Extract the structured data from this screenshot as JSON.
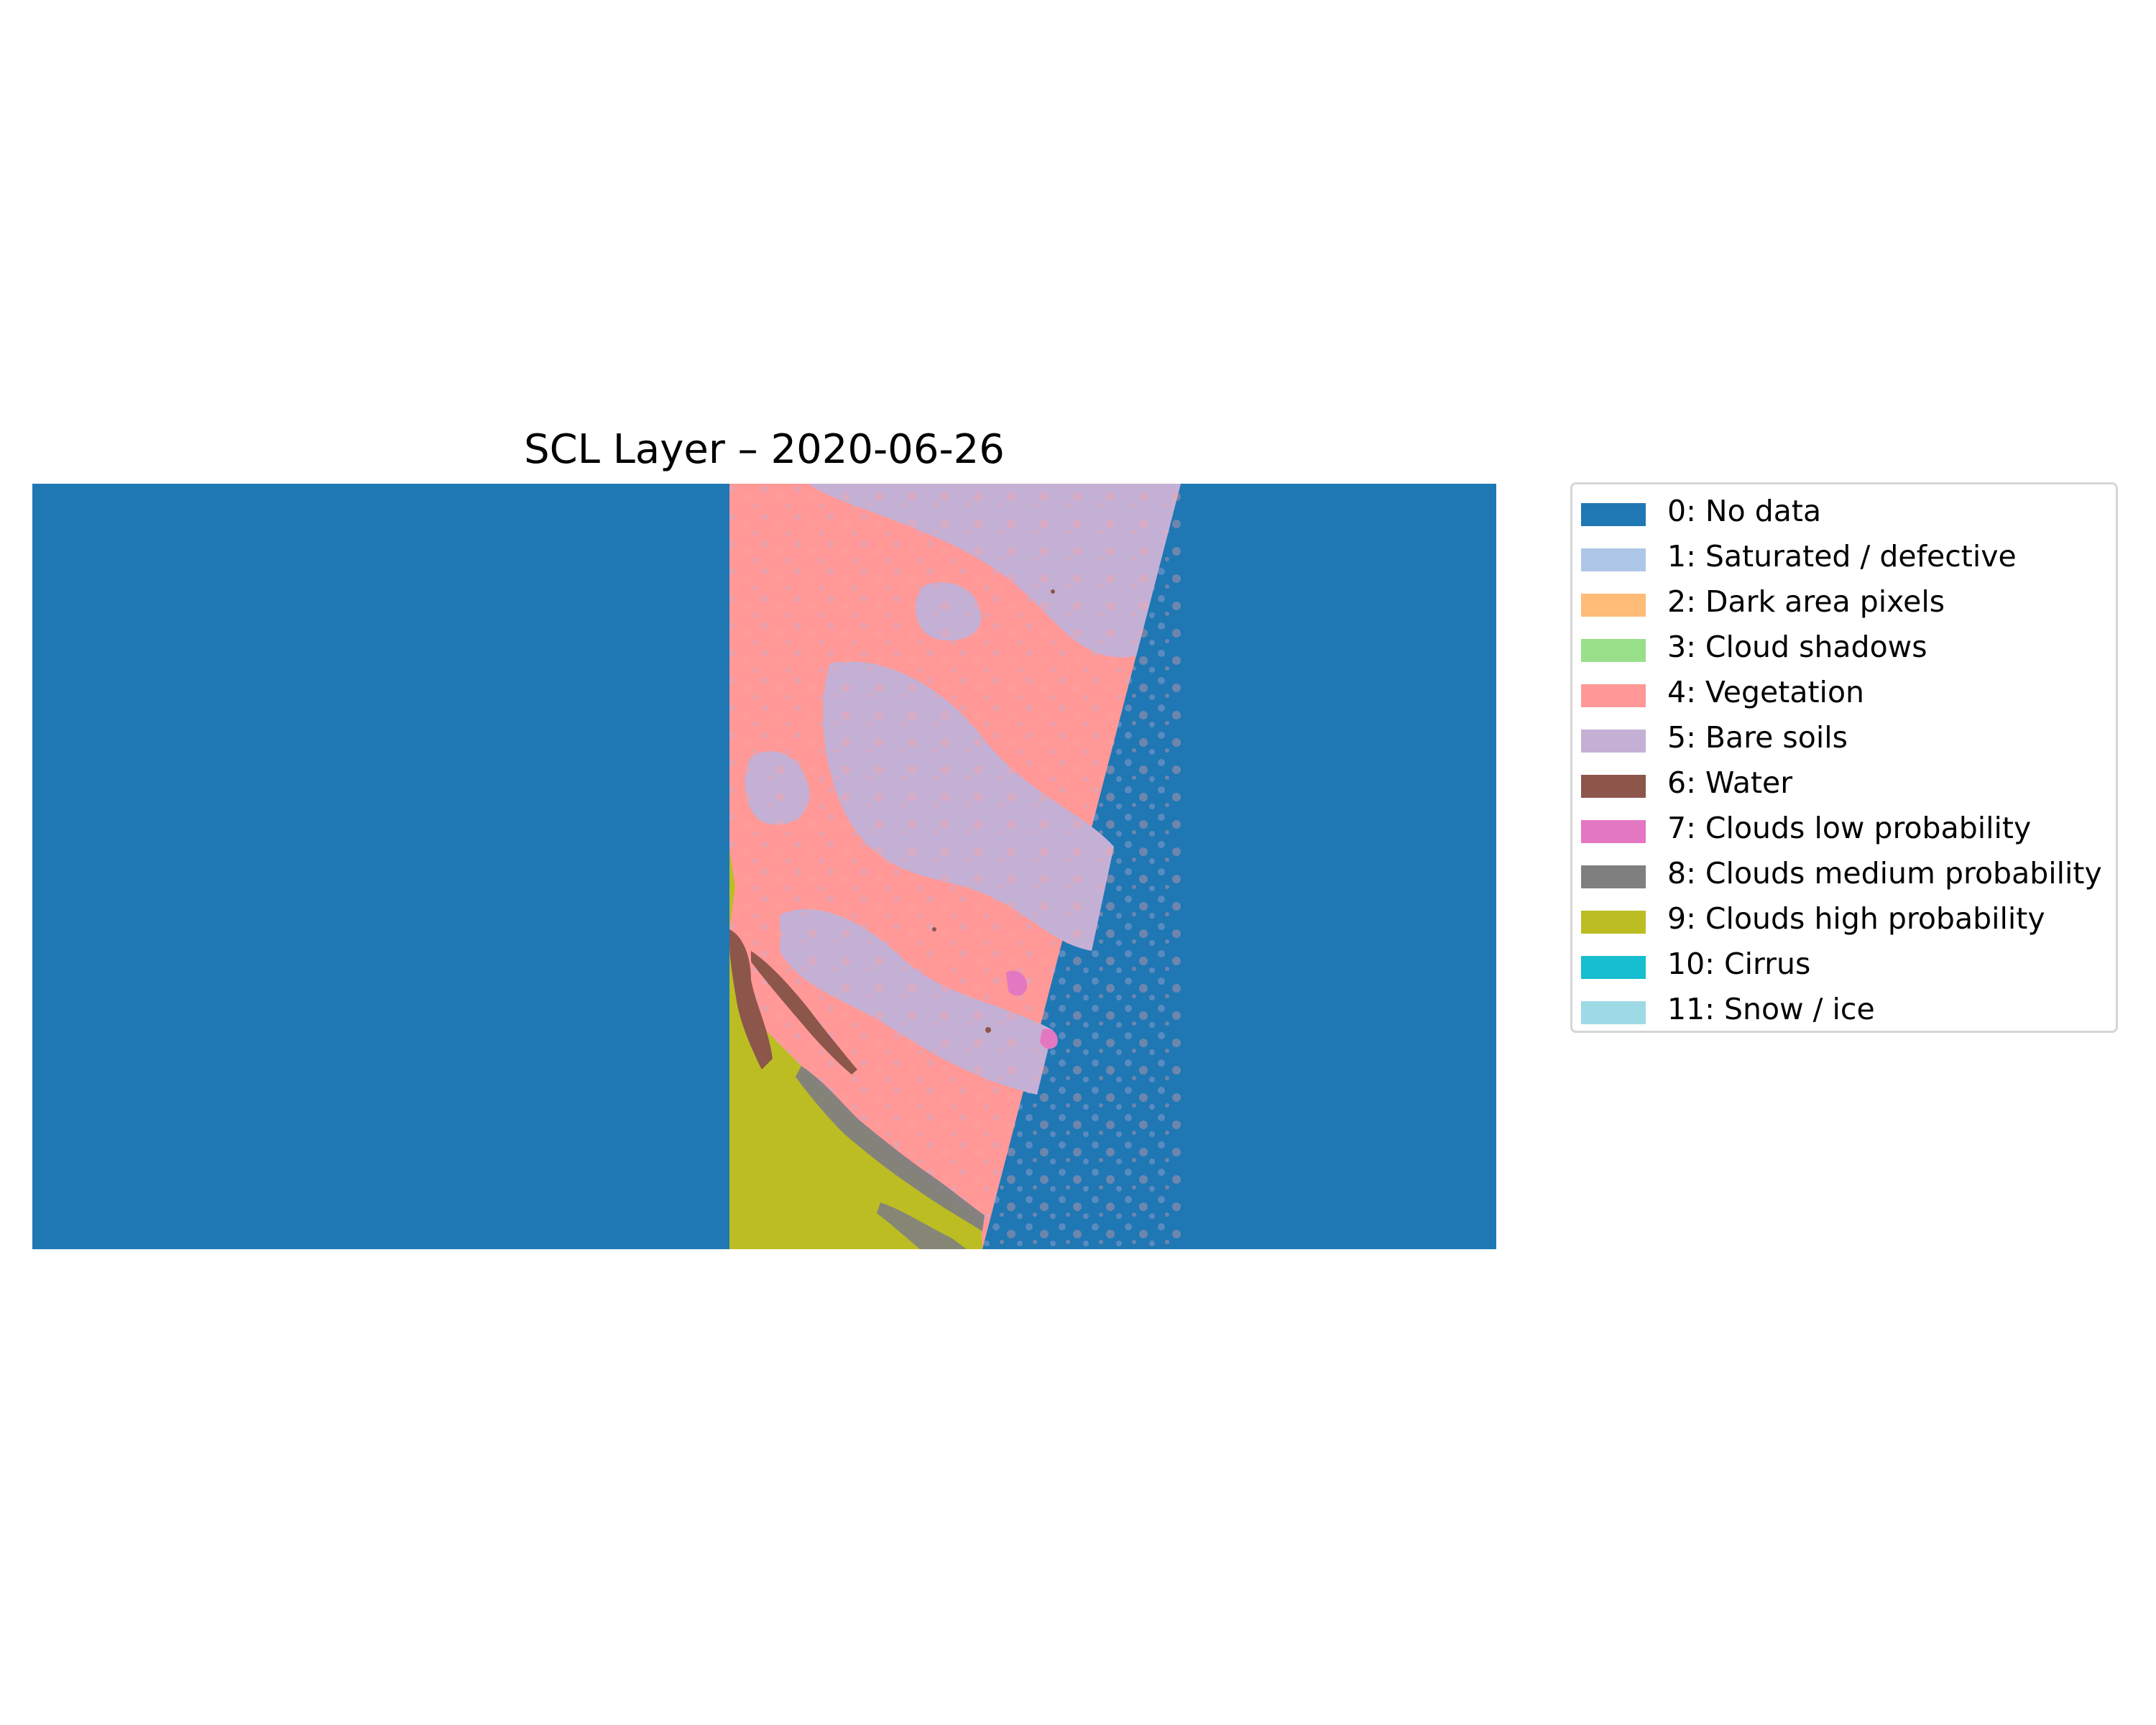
{
  "title": "SCL Layer – 2020-06-26",
  "legend": {
    "placement": "right",
    "items": [
      {
        "label": "0: No data",
        "color": "#1f77b4"
      },
      {
        "label": "1: Saturated / defective",
        "color": "#aec7e8"
      },
      {
        "label": "2: Dark area pixels",
        "color": "#ffbb78"
      },
      {
        "label": "3: Cloud shadows",
        "color": "#98df8a"
      },
      {
        "label": "4: Vegetation",
        "color": "#ff9896"
      },
      {
        "label": "5: Bare soils",
        "color": "#c5b0d5"
      },
      {
        "label": "6: Water",
        "color": "#8c564b"
      },
      {
        "label": "7: Clouds low probability",
        "color": "#e377c2"
      },
      {
        "label": "8: Clouds medium probability",
        "color": "#7f7f7f"
      },
      {
        "label": "9: Clouds high probability",
        "color": "#bcbd22"
      },
      {
        "label": "10: Cirrus",
        "color": "#17becf"
      },
      {
        "label": "11: Snow / ice",
        "color": "#9edae5"
      }
    ]
  },
  "map": {
    "kind": "classified raster scene",
    "classes_visible": [
      "No data",
      "Vegetation",
      "Bare soils",
      "Water",
      "Clouds low probability",
      "Clouds medium probability",
      "Clouds high probability"
    ]
  }
}
